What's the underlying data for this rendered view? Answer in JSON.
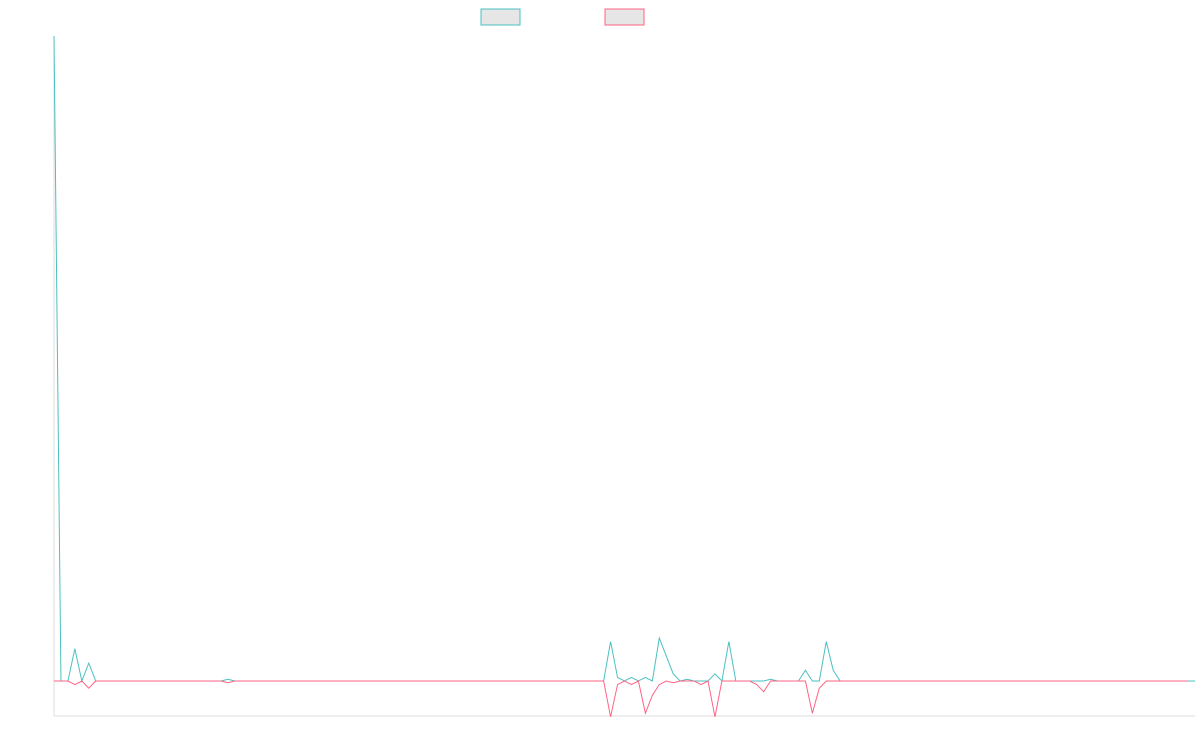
{
  "chart_data": {
    "type": "line",
    "title": "",
    "xlabel": "",
    "ylabel": "",
    "legend": "top-center",
    "grid": false,
    "x_ticks_visible": false,
    "y_ticks_visible": false,
    "xlim": [
      0,
      162
    ],
    "ylim": [
      -0.1,
      1.7
    ],
    "series": [
      {
        "color": "#4bc0c0",
        "values": [
          1.8,
          0,
          0,
          0.09,
          0,
          0.05,
          0,
          0,
          0,
          0,
          0,
          0,
          0,
          0,
          0,
          0,
          0,
          0,
          0,
          0,
          0,
          0,
          0,
          0,
          0,
          0.005,
          0,
          0,
          0,
          0,
          0,
          0,
          0,
          0,
          0,
          0,
          0,
          0,
          0,
          0,
          0,
          0,
          0,
          0,
          0,
          0,
          0,
          0,
          0,
          0,
          0,
          0,
          0,
          0,
          0,
          0,
          0,
          0,
          0,
          0,
          0,
          0,
          0,
          0,
          0,
          0,
          0,
          0,
          0,
          0,
          0,
          0,
          0,
          0,
          0,
          0,
          0,
          0,
          0,
          0,
          0.11,
          0.01,
          0,
          0.01,
          0,
          0.01,
          0,
          0.12,
          0.07,
          0.02,
          0,
          0.005,
          0,
          0,
          0,
          0.02,
          0,
          0.11,
          0,
          0,
          0,
          0,
          0,
          0.005,
          0,
          0,
          0,
          0,
          0.03,
          0,
          0,
          0.11,
          0.03,
          0,
          0,
          0,
          0,
          0,
          0,
          0,
          0,
          0,
          0,
          0,
          0,
          0,
          0,
          0,
          0,
          0,
          0,
          0,
          0,
          0,
          0,
          0,
          0,
          0,
          0,
          0,
          0,
          0,
          0,
          0,
          0,
          0,
          0,
          0,
          0,
          0,
          0,
          0,
          0,
          0,
          0,
          0,
          0,
          0,
          0,
          0,
          0,
          0,
          0,
          0,
          0
        ]
      },
      {
        "color": "#ff6384",
        "values": [
          0,
          0,
          0,
          -0.01,
          0,
          -0.02,
          0,
          0,
          0,
          0,
          0,
          0,
          0,
          0,
          0,
          0,
          0,
          0,
          0,
          0,
          0,
          0,
          0,
          0,
          0,
          -0.005,
          0,
          0,
          0,
          0,
          0,
          0,
          0,
          0,
          0,
          0,
          0,
          0,
          0,
          0,
          0,
          0,
          0,
          0,
          0,
          0,
          0,
          0,
          0,
          0,
          0,
          0,
          0,
          0,
          0,
          0,
          0,
          0,
          0,
          0,
          0,
          0,
          0,
          0,
          0,
          0,
          0,
          0,
          0,
          0,
          0,
          0,
          0,
          0,
          0,
          0,
          0,
          0,
          0,
          0,
          -0.1,
          -0.01,
          0,
          -0.01,
          0,
          -0.09,
          -0.04,
          -0.01,
          0,
          -0.005,
          0,
          0,
          0,
          -0.01,
          0,
          -0.1,
          0,
          0,
          0,
          0,
          0,
          -0.01,
          -0.03,
          0,
          0,
          0,
          0,
          0,
          0,
          -0.09,
          -0.02,
          0,
          0,
          0,
          0,
          0,
          0,
          0,
          0,
          0,
          0,
          0,
          0,
          0,
          0,
          0,
          0,
          0,
          0,
          0,
          0,
          0,
          0,
          0,
          0,
          0,
          0,
          0,
          0,
          0,
          0,
          0,
          0,
          0,
          0,
          0,
          0,
          0,
          0,
          0,
          0,
          0,
          0,
          0,
          0,
          0,
          0,
          0,
          0,
          0,
          0,
          0,
          0,
          0
        ]
      }
    ]
  }
}
